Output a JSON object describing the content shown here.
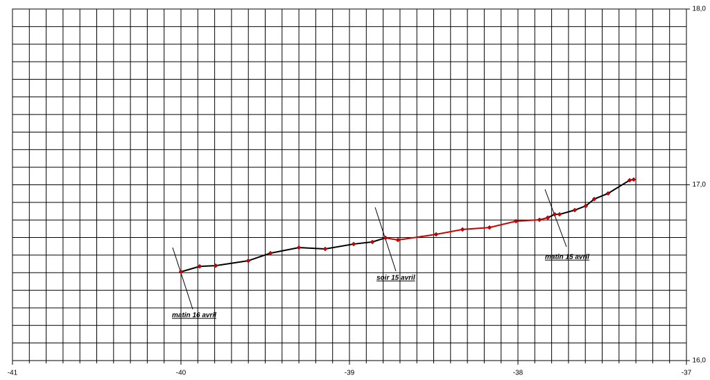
{
  "chart_data": {
    "type": "line",
    "xlim": [
      -41,
      -37
    ],
    "xticks": [
      -41,
      -40,
      -39,
      -38,
      -37
    ],
    "ylim": [
      16,
      18
    ],
    "yticks": [
      {
        "value": 16,
        "label": "16,0"
      },
      {
        "value": 17,
        "label": "17,0"
      },
      {
        "value": 18,
        "label": "18,0"
      }
    ],
    "grid": {
      "x_step": 0.1,
      "y_step": 0.1
    },
    "marker_color": "#cc0000",
    "series": [
      {
        "color": "#000000",
        "x": [
          -40.0,
          -39.889,
          -39.794,
          -39.601,
          -39.469,
          -39.3,
          -39.144,
          -38.975,
          -38.864,
          -38.786
        ],
        "values": [
          16.505,
          16.536,
          16.54,
          16.568,
          16.611,
          16.643,
          16.635,
          16.663,
          16.675,
          16.698
        ]
      },
      {
        "color": "#cc0000",
        "x": [
          -38.786,
          -38.712,
          -38.486,
          -38.329,
          -38.169,
          -38.012,
          -37.872,
          -37.823
        ],
        "values": [
          16.698,
          16.686,
          16.718,
          16.746,
          16.757,
          16.793,
          16.801,
          16.813
        ]
      },
      {
        "color": "#000000",
        "x": [
          -37.823,
          -37.782,
          -37.753,
          -37.663,
          -37.597,
          -37.547,
          -37.465,
          -37.337,
          -37.313
        ],
        "values": [
          16.813,
          16.832,
          16.832,
          16.856,
          16.88,
          16.919,
          16.951,
          17.026,
          17.03
        ]
      }
    ],
    "annotations": [
      "matin 16 avril",
      "soir 15 avril",
      "matin 15 avril"
    ]
  }
}
